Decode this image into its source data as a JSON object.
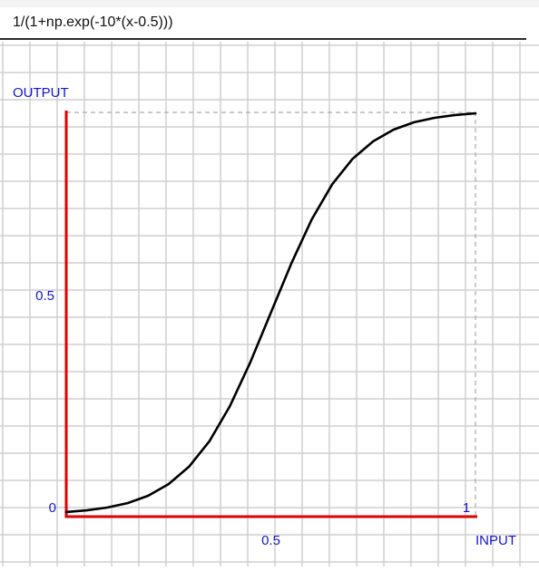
{
  "formula": {
    "value": "1/(1+np.exp(-10*(x-0.5)))"
  },
  "chart_data": {
    "type": "line",
    "xlabel": "INPUT",
    "ylabel": "OUTPUT",
    "x_ticks": [
      {
        "value": 0.5,
        "label": "0.5"
      },
      {
        "value": 1,
        "label": "1"
      }
    ],
    "y_ticks": [
      {
        "value": 0,
        "label": "0"
      },
      {
        "value": 0.5,
        "label": "0.5"
      }
    ],
    "xlim": [
      0,
      1
    ],
    "ylim": [
      0,
      1
    ],
    "grid": true,
    "series": [
      {
        "x": [
          0,
          0.05,
          0.1,
          0.15,
          0.2,
          0.25,
          0.3,
          0.35,
          0.4,
          0.45,
          0.5,
          0.55,
          0.6,
          0.65,
          0.7,
          0.75,
          0.8,
          0.85,
          0.9,
          0.95,
          1
        ],
        "y": [
          0.007,
          0.011,
          0.018,
          0.029,
          0.047,
          0.076,
          0.119,
          0.182,
          0.269,
          0.378,
          0.5,
          0.622,
          0.731,
          0.818,
          0.881,
          0.924,
          0.953,
          0.971,
          0.982,
          0.989,
          0.993
        ]
      }
    ],
    "colors": {
      "axes": "#e00000",
      "curve": "#000000",
      "labels": "#1414d4",
      "grid": "#cfcfcf",
      "guide": "#a8a8a8"
    }
  }
}
